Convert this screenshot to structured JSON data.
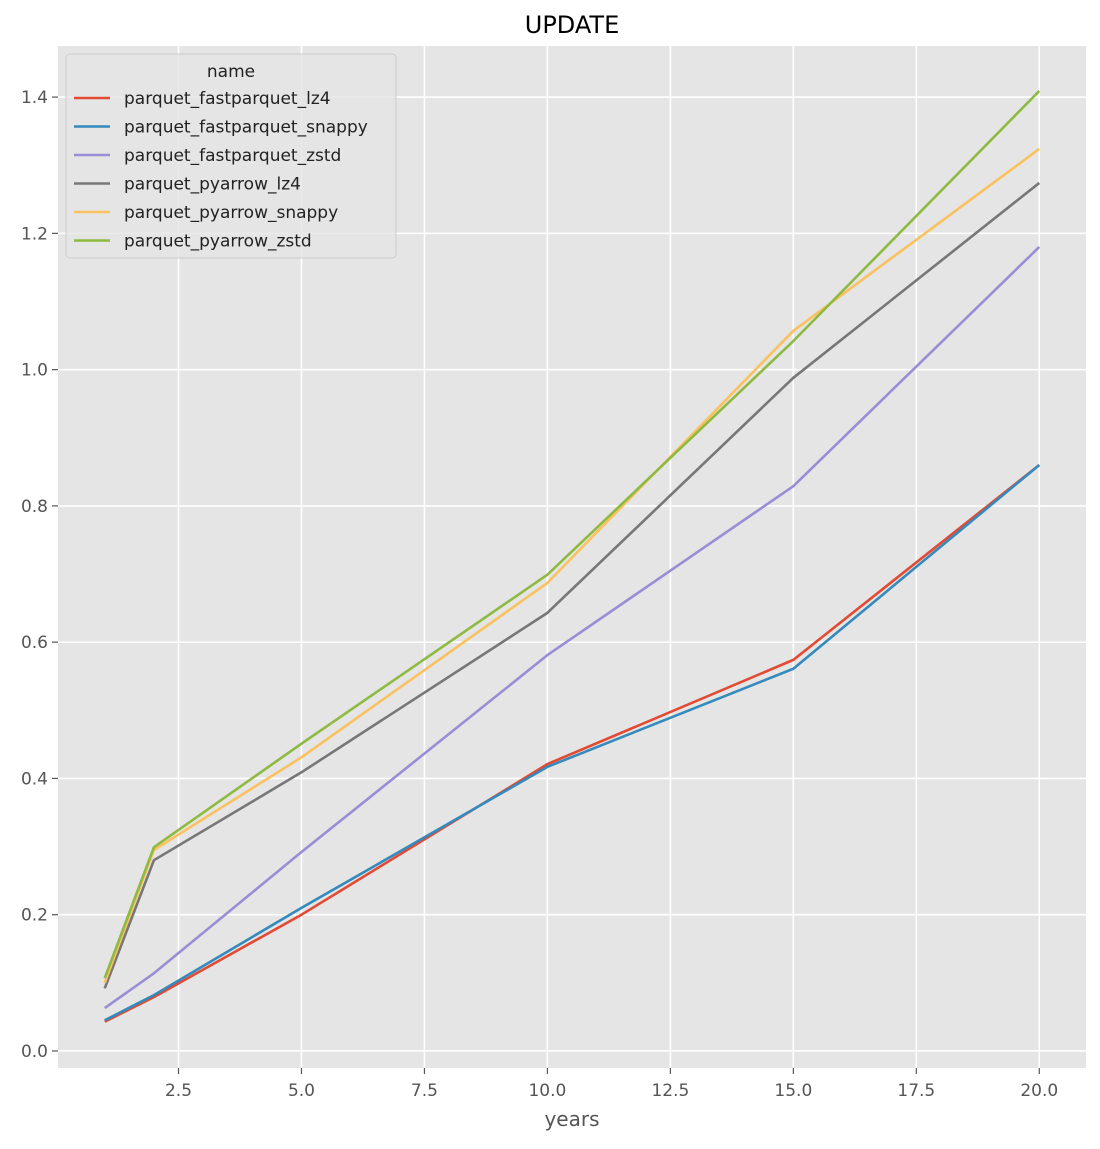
{
  "chart_data": {
    "type": "line",
    "title": "UPDATE",
    "xlabel": "years",
    "ylabel": "",
    "xlim": [
      0.05,
      20.95
    ],
    "ylim": [
      -0.025,
      1.475
    ],
    "xticks": [
      2.5,
      5.0,
      7.5,
      10.0,
      12.5,
      15.0,
      17.5,
      20.0
    ],
    "xtick_labels": [
      "2.5",
      "5.0",
      "7.5",
      "10.0",
      "12.5",
      "15.0",
      "17.5",
      "20.0"
    ],
    "yticks": [
      0.0,
      0.2,
      0.4,
      0.6,
      0.8,
      1.0,
      1.2,
      1.4
    ],
    "ytick_labels": [
      "0.0",
      "0.2",
      "0.4",
      "0.6",
      "0.8",
      "1.0",
      "1.2",
      "1.4"
    ],
    "grid": true,
    "legend": {
      "title": "name",
      "placement": "top-left"
    },
    "x": [
      1,
      2,
      5,
      10,
      15,
      20
    ],
    "series": [
      {
        "name": "parquet_fastparquet_lz4",
        "color": "#E24A33",
        "values": [
          0.043,
          0.079,
          0.2,
          0.421,
          0.574,
          0.86
        ]
      },
      {
        "name": "parquet_fastparquet_snappy",
        "color": "#348ABD",
        "values": [
          0.045,
          0.082,
          0.21,
          0.417,
          0.561,
          0.86
        ]
      },
      {
        "name": "parquet_fastparquet_zstd",
        "color": "#988ED5",
        "values": [
          0.063,
          0.114,
          0.292,
          0.581,
          0.829,
          1.18
        ]
      },
      {
        "name": "parquet_pyarrow_lz4",
        "color": "#777777",
        "values": [
          0.092,
          0.28,
          0.409,
          0.643,
          0.988,
          1.274
        ]
      },
      {
        "name": "parquet_pyarrow_snappy",
        "color": "#FBC15E",
        "values": [
          0.1,
          0.295,
          0.431,
          0.687,
          1.057,
          1.324
        ]
      },
      {
        "name": "parquet_pyarrow_zstd",
        "color": "#8EBA42",
        "values": [
          0.107,
          0.299,
          0.451,
          0.699,
          1.042,
          1.409
        ]
      }
    ]
  }
}
